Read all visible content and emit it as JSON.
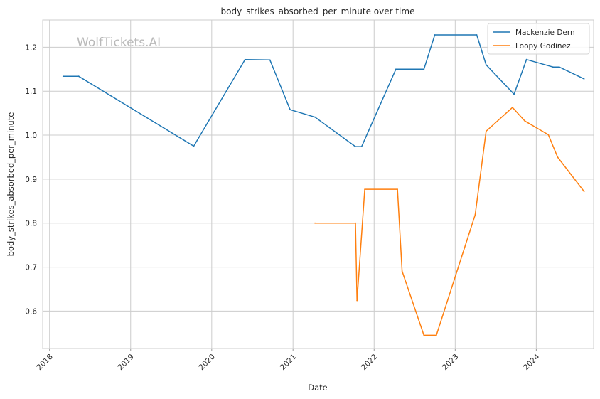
{
  "chart_data": {
    "type": "line",
    "title": "body_strikes_absorbed_per_minute over time",
    "xlabel": "Date",
    "ylabel": "body_strikes_absorbed_per_minute",
    "watermark": "WolfTickets.AI",
    "x_ticks": [
      "2018",
      "2019",
      "2020",
      "2021",
      "2022",
      "2023",
      "2024"
    ],
    "y_ticks": [
      "0.6",
      "0.7",
      "0.8",
      "0.9",
      "1.0",
      "1.1",
      "1.2"
    ],
    "xlim": [
      "2017-12-01",
      "2024-09-15"
    ],
    "ylim": [
      0.515,
      1.262
    ],
    "grid": true,
    "legend_position": "top-right",
    "series": [
      {
        "name": "Mackenzie Dern",
        "color": "#1f77b4",
        "points": [
          [
            "2018-03-03",
            1.134
          ],
          [
            "2018-05-12",
            1.134
          ],
          [
            "2019-10-12",
            0.975
          ],
          [
            "2020-05-30",
            1.172
          ],
          [
            "2020-09-19",
            1.171
          ],
          [
            "2020-12-19",
            1.058
          ],
          [
            "2021-04-10",
            1.041
          ],
          [
            "2021-10-09",
            0.974
          ],
          [
            "2021-11-06",
            0.974
          ],
          [
            "2022-04-09",
            1.15
          ],
          [
            "2022-08-13",
            1.15
          ],
          [
            "2022-10-01",
            1.228
          ],
          [
            "2023-04-08",
            1.228
          ],
          [
            "2023-05-20",
            1.16
          ],
          [
            "2023-09-23",
            1.093
          ],
          [
            "2023-11-18",
            1.172
          ],
          [
            "2024-03-16",
            1.155
          ],
          [
            "2024-04-13",
            1.155
          ],
          [
            "2024-08-03",
            1.128
          ]
        ]
      },
      {
        "name": "Loopy Godinez",
        "color": "#ff7f0e",
        "points": [
          [
            "2021-04-10",
            0.8
          ],
          [
            "2021-10-09",
            0.8
          ],
          [
            "2021-10-16",
            0.624
          ],
          [
            "2021-11-20",
            0.877
          ],
          [
            "2022-04-16",
            0.877
          ],
          [
            "2022-05-07",
            0.691
          ],
          [
            "2022-08-13",
            0.545
          ],
          [
            "2022-10-08",
            0.545
          ],
          [
            "2023-04-01",
            0.819
          ],
          [
            "2023-05-20",
            1.009
          ],
          [
            "2023-09-16",
            1.063
          ],
          [
            "2023-11-11",
            1.032
          ],
          [
            "2024-02-24",
            1.001
          ],
          [
            "2024-04-06",
            0.95
          ],
          [
            "2024-08-03",
            0.872
          ]
        ]
      }
    ]
  }
}
